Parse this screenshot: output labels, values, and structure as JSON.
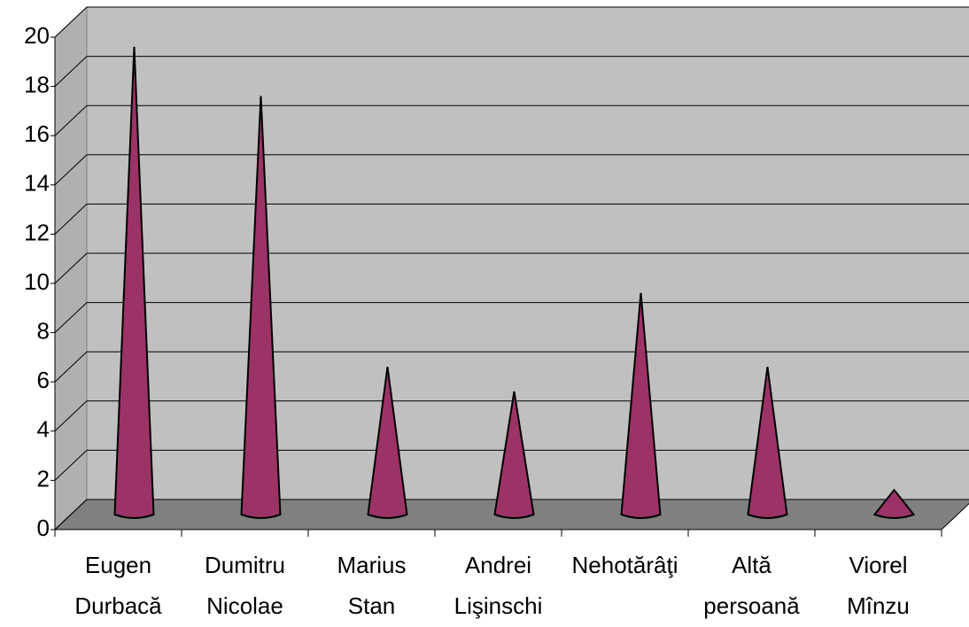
{
  "chart_data": {
    "type": "cone",
    "categories": [
      "Eugen Durbacă",
      "Dumitru Nicolae",
      "Marius Stan",
      "Andrei Lişinschi",
      "Nehotărâţi",
      "Altă persoană",
      "Viorel Mînzu"
    ],
    "values": [
      19,
      17,
      6,
      5,
      9,
      6,
      1
    ],
    "color": "#9b3366",
    "ylim": [
      0,
      20
    ],
    "yticks": [
      0,
      2,
      4,
      6,
      8,
      10,
      12,
      14,
      16,
      18,
      20
    ],
    "grid": true
  }
}
